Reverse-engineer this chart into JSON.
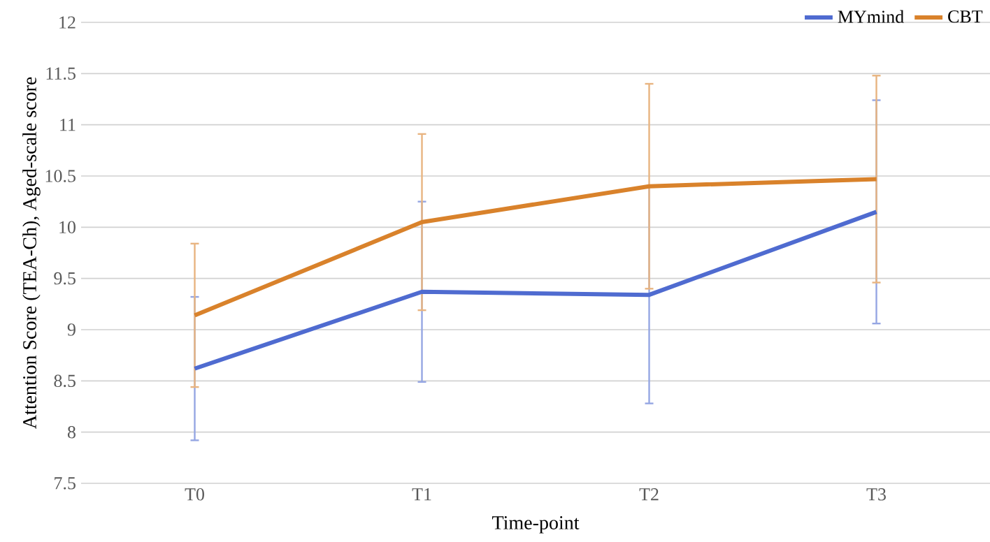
{
  "chart_data": {
    "type": "line",
    "xlabel": "Time-point",
    "ylabel": "Attention Score (TEA-Ch), Aged-scale score",
    "categories": [
      "T0",
      "T1",
      "T2",
      "T3"
    ],
    "series": [
      {
        "name": "MYmind",
        "color": "#4f6bd0",
        "values": [
          8.62,
          9.37,
          9.34,
          10.15
        ],
        "errors": [
          0.7,
          0.88,
          1.06,
          1.09
        ]
      },
      {
        "name": "CBT",
        "color": "#d9822b",
        "values": [
          9.14,
          10.05,
          10.4,
          10.47
        ],
        "errors": [
          0.7,
          0.86,
          1.0,
          1.01
        ]
      }
    ],
    "ylim": [
      7.5,
      12
    ],
    "yticks": [
      7.5,
      8,
      8.5,
      9,
      9.5,
      10,
      10.5,
      11,
      11.5,
      12
    ],
    "grid": "y",
    "legend": "top right",
    "marker": "none",
    "line_style": "solid"
  }
}
